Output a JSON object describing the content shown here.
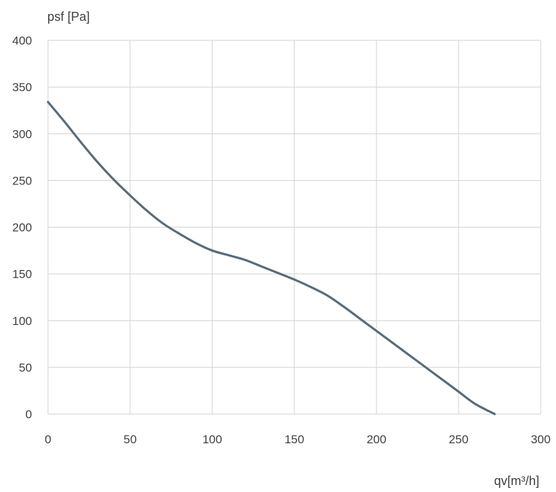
{
  "chart_data": {
    "type": "line",
    "ylabel": "psf [Pa]",
    "xlabel": "qv[m³/h]",
    "xlim": [
      0,
      300
    ],
    "ylim": [
      0,
      400
    ],
    "xticks": [
      0,
      50,
      100,
      150,
      200,
      250,
      300
    ],
    "yticks": [
      0,
      50,
      100,
      150,
      200,
      250,
      300,
      350,
      400
    ],
    "grid": true,
    "colors": {
      "line": "#5a6b78",
      "grid": "#d9d9d9"
    },
    "series": [
      {
        "x": [
          0,
          10,
          20,
          30,
          40,
          50,
          60,
          70,
          80,
          90,
          100,
          110,
          120,
          130,
          140,
          150,
          160,
          170,
          180,
          190,
          200,
          210,
          220,
          230,
          240,
          250,
          260,
          272
        ],
        "y": [
          334,
          313,
          291,
          270,
          251,
          234,
          218,
          204,
          193,
          183,
          175,
          170,
          165,
          158,
          151,
          144,
          136,
          127,
          115,
          102,
          89,
          76,
          63,
          50,
          37,
          24,
          11,
          0
        ]
      }
    ]
  }
}
